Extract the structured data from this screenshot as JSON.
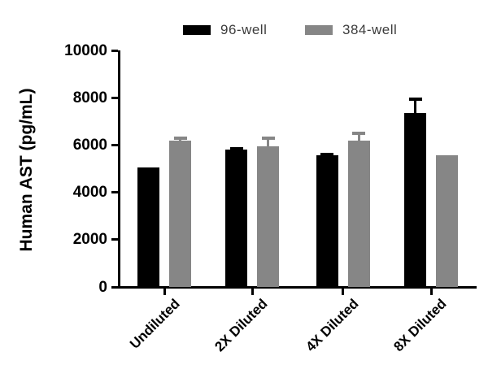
{
  "chart_data": {
    "type": "bar",
    "title": "",
    "categories": [
      "Undiluted",
      "2X Diluted",
      "4X Diluted",
      "8X Diluted"
    ],
    "series": [
      {
        "name": "96-well",
        "color": "#000000",
        "values": [
          5050,
          5800,
          5550,
          7350
        ],
        "errors_plus": [
          0,
          100,
          110,
          650
        ]
      },
      {
        "name": "384-well",
        "color": "#868686",
        "values": [
          6200,
          5950,
          6200,
          5550
        ],
        "errors_plus": [
          150,
          400,
          375,
          0
        ]
      }
    ],
    "xlabel": "",
    "ylabel": "Human AST (pg/mL)",
    "ylim": [
      0,
      10000
    ],
    "yticks": [
      "0",
      "2000",
      "4000",
      "6000",
      "8000",
      "10000"
    ],
    "grid": false,
    "legend_position": "top",
    "error_bar_style": "upper-cap"
  }
}
